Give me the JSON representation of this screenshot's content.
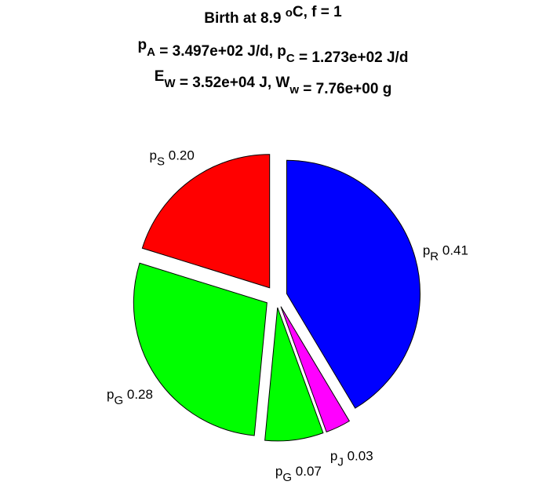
{
  "chart_data": {
    "type": "pie",
    "title_lines": [
      [
        {
          "t": "Birth at 8.9 "
        },
        {
          "t": "o",
          "sup": true
        },
        {
          "t": "C, f = 1"
        }
      ],
      [
        {
          "t": "p"
        },
        {
          "t": "A",
          "sub": true
        },
        {
          "t": " = 3.497e+02 J/d, p"
        },
        {
          "t": "C",
          "sub": true
        },
        {
          "t": " = 1.273e+02 J/d"
        }
      ],
      [
        {
          "t": "E"
        },
        {
          "t": "W",
          "sub": true
        },
        {
          "t": " = 3.52e+04 J, W"
        },
        {
          "t": "w",
          "sub": true
        },
        {
          "t": " = 7.76e+00 g"
        }
      ]
    ],
    "slices": [
      {
        "sym": "p",
        "sub": "R",
        "value": 0.41,
        "color": "#0000ff"
      },
      {
        "sym": "p",
        "sub": "J",
        "value": 0.03,
        "color": "#ff00ff"
      },
      {
        "sym": "p",
        "sub": "G",
        "value": 0.07,
        "color": "#00ff00"
      },
      {
        "sym": "p",
        "sub": "G",
        "value": 0.28,
        "color": "#00ff00"
      },
      {
        "sym": "p",
        "sub": "S",
        "value": 0.2,
        "color": "#ff0000"
      }
    ],
    "exploded": true,
    "direction": "clockwise",
    "start": "top"
  }
}
